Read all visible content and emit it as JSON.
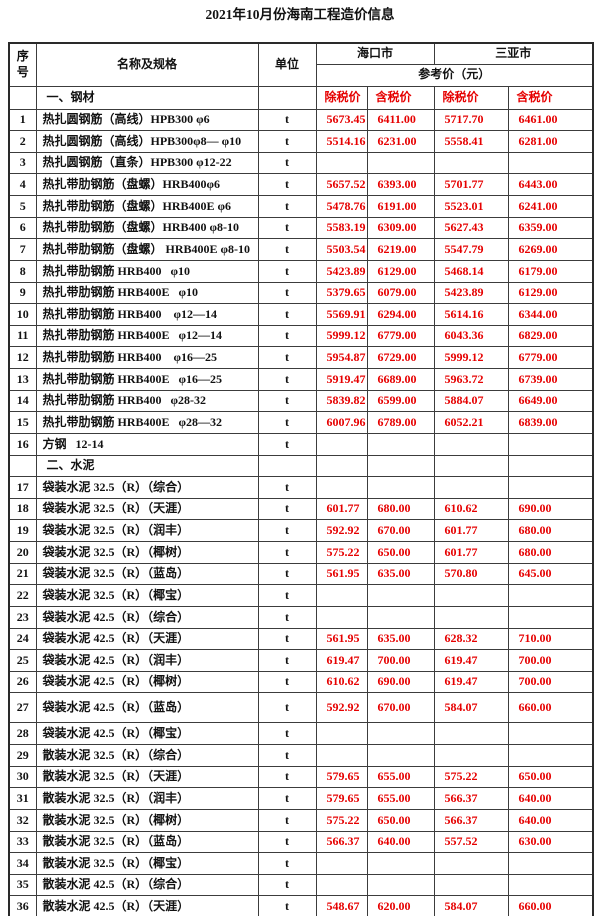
{
  "title": "2021年10月份海南工程造价信息",
  "colors": {
    "price_red": "#e60000",
    "text_black": "#111111"
  },
  "table": {
    "header": {
      "seq": "序号",
      "name_spec": "名称及规格",
      "unit": "单位",
      "city_haikou": "海口市",
      "city_sanya": "三亚市",
      "ref_price": "参考价（元）",
      "price_cols": [
        "除税价",
        "含税价",
        "除税价",
        "含税价"
      ],
      "section_steel": "一、钢材"
    },
    "rows": [
      {
        "seq": "1",
        "name": "热扎圆钢筋（高线）HPB300 φ6",
        "unit": "t",
        "prices": [
          "5673.45",
          "6411.00",
          "5717.70",
          "6461.00"
        ]
      },
      {
        "seq": "2",
        "name": "热扎圆钢筋（高线）HPB300φ8— φ10",
        "unit": "t",
        "prices": [
          "5514.16",
          "6231.00",
          "5558.41",
          "6281.00"
        ]
      },
      {
        "seq": "3",
        "name": "热扎圆钢筋（直条）HPB300 φ12-22",
        "unit": "t",
        "prices": [
          "",
          "",
          "",
          ""
        ]
      },
      {
        "seq": "4",
        "name": "热扎带肋钢筋（盘螺）HRB400φ6",
        "unit": "t",
        "prices": [
          "5657.52",
          "6393.00",
          "5701.77",
          "6443.00"
        ]
      },
      {
        "seq": "5",
        "name": "热扎带肋钢筋（盘螺）HRB400E φ6",
        "unit": "t",
        "prices": [
          "5478.76",
          "6191.00",
          "5523.01",
          "6241.00"
        ]
      },
      {
        "seq": "6",
        "name": "热扎带肋钢筋（盘螺）HRB400 φ8-10",
        "unit": "t",
        "prices": [
          "5583.19",
          "6309.00",
          "5627.43",
          "6359.00"
        ]
      },
      {
        "seq": "7",
        "name": "热扎带肋钢筋（盘螺） HRB400E φ8-10",
        "unit": "t",
        "prices": [
          "5503.54",
          "6219.00",
          "5547.79",
          "6269.00"
        ]
      },
      {
        "seq": "8",
        "name": "热扎带肋钢筋 HRB400   φ10",
        "unit": "t",
        "prices": [
          "5423.89",
          "6129.00",
          "5468.14",
          "6179.00"
        ]
      },
      {
        "seq": "9",
        "name": "热扎带肋钢筋 HRB400E   φ10",
        "unit": "t",
        "prices": [
          "5379.65",
          "6079.00",
          "5423.89",
          "6129.00"
        ]
      },
      {
        "seq": "10",
        "name": "热扎带肋钢筋 HRB400    φ12—14",
        "unit": "t",
        "prices": [
          "5569.91",
          "6294.00",
          "5614.16",
          "6344.00"
        ]
      },
      {
        "seq": "11",
        "name": "热扎带肋钢筋 HRB400E   φ12—14",
        "unit": "t",
        "prices": [
          "5999.12",
          "6779.00",
          "6043.36",
          "6829.00"
        ]
      },
      {
        "seq": "12",
        "name": "热扎带肋钢筋 HRB400    φ16—25",
        "unit": "t",
        "prices": [
          "5954.87",
          "6729.00",
          "5999.12",
          "6779.00"
        ]
      },
      {
        "seq": "13",
        "name": "热扎带肋钢筋 HRB400E   φ16—25",
        "unit": "t",
        "prices": [
          "5919.47",
          "6689.00",
          "5963.72",
          "6739.00"
        ]
      },
      {
        "seq": "14",
        "name": "热扎带肋钢筋 HRB400   φ28-32",
        "unit": "t",
        "prices": [
          "5839.82",
          "6599.00",
          "5884.07",
          "6649.00"
        ]
      },
      {
        "seq": "15",
        "name": "热扎带肋钢筋 HRB400E   φ28—32",
        "unit": "t",
        "prices": [
          "6007.96",
          "6789.00",
          "6052.21",
          "6839.00"
        ]
      },
      {
        "seq": "16",
        "name": "方钢   12-14",
        "unit": "t",
        "prices": [
          "",
          "",
          "",
          ""
        ]
      },
      {
        "section": "二、水泥"
      },
      {
        "seq": "17",
        "name": "袋装水泥 32.5（R）（综合）",
        "unit": "t",
        "prices": [
          "",
          "",
          "",
          ""
        ]
      },
      {
        "seq": "18",
        "name": "袋装水泥 32.5（R）（天涯）",
        "unit": "t",
        "prices": [
          "601.77",
          "680.00",
          "610.62",
          "690.00"
        ]
      },
      {
        "seq": "19",
        "name": "袋装水泥 32.5（R）（润丰）",
        "unit": "t",
        "prices": [
          "592.92",
          "670.00",
          "601.77",
          "680.00"
        ]
      },
      {
        "seq": "20",
        "name": "袋装水泥 32.5（R）（椰树）",
        "unit": "t",
        "prices": [
          "575.22",
          "650.00",
          "601.77",
          "680.00"
        ]
      },
      {
        "seq": "21",
        "name": "袋装水泥 32.5（R）（蓝岛）",
        "unit": "t",
        "prices": [
          "561.95",
          "635.00",
          "570.80",
          "645.00"
        ]
      },
      {
        "seq": "22",
        "name": "袋装水泥 32.5（R）（椰宝）",
        "unit": "t",
        "prices": [
          "",
          "",
          "",
          ""
        ]
      },
      {
        "seq": "23",
        "name": "袋装水泥 42.5（R）（综合）",
        "unit": "t",
        "prices": [
          "",
          "",
          "",
          ""
        ]
      },
      {
        "seq": "24",
        "name": "袋装水泥 42.5（R）（天涯）",
        "unit": "t",
        "prices": [
          "561.95",
          "635.00",
          "628.32",
          "710.00"
        ]
      },
      {
        "seq": "25",
        "name": "袋装水泥 42.5（R）（润丰）",
        "unit": "t",
        "prices": [
          "619.47",
          "700.00",
          "619.47",
          "700.00"
        ]
      },
      {
        "seq": "26",
        "name": "袋装水泥 42.5（R）（椰树）",
        "unit": "t",
        "prices": [
          "610.62",
          "690.00",
          "619.47",
          "700.00"
        ]
      },
      {
        "seq": "27",
        "name": "袋装水泥 42.5（R）（蓝岛）",
        "unit": "t",
        "prices": [
          "592.92",
          "670.00",
          "584.07",
          "660.00"
        ],
        "tall": true
      },
      {
        "seq": "28",
        "name": "袋装水泥 42.5（R）（椰宝）",
        "unit": "t",
        "prices": [
          "",
          "",
          "",
          ""
        ]
      },
      {
        "seq": "29",
        "name": "散装水泥 32.5（R）（综合）",
        "unit": "t",
        "prices": [
          "",
          "",
          "",
          ""
        ]
      },
      {
        "seq": "30",
        "name": "散装水泥 32.5（R）（天涯）",
        "unit": "t",
        "prices": [
          "579.65",
          "655.00",
          "575.22",
          "650.00"
        ]
      },
      {
        "seq": "31",
        "name": "散装水泥 32.5（R）（润丰）",
        "unit": "t",
        "prices": [
          "579.65",
          "655.00",
          "566.37",
          "640.00"
        ]
      },
      {
        "seq": "32",
        "name": "散装水泥 32.5（R）（椰树）",
        "unit": "t",
        "prices": [
          "575.22",
          "650.00",
          "566.37",
          "640.00"
        ]
      },
      {
        "seq": "33",
        "name": "散装水泥 32.5（R）（蓝岛）",
        "unit": "t",
        "prices": [
          "566.37",
          "640.00",
          "557.52",
          "630.00"
        ]
      },
      {
        "seq": "34",
        "name": "散装水泥 32.5（R）（椰宝）",
        "unit": "t",
        "prices": [
          "",
          "",
          "",
          ""
        ]
      },
      {
        "seq": "35",
        "name": "散装水泥 42.5（R）（综合）",
        "unit": "t",
        "prices": [
          "",
          "",
          "",
          ""
        ]
      },
      {
        "seq": "36",
        "name": "散装水泥 42.5（R）（天涯）",
        "unit": "t",
        "prices": [
          "548.67",
          "620.00",
          "584.07",
          "660.00"
        ]
      }
    ]
  }
}
